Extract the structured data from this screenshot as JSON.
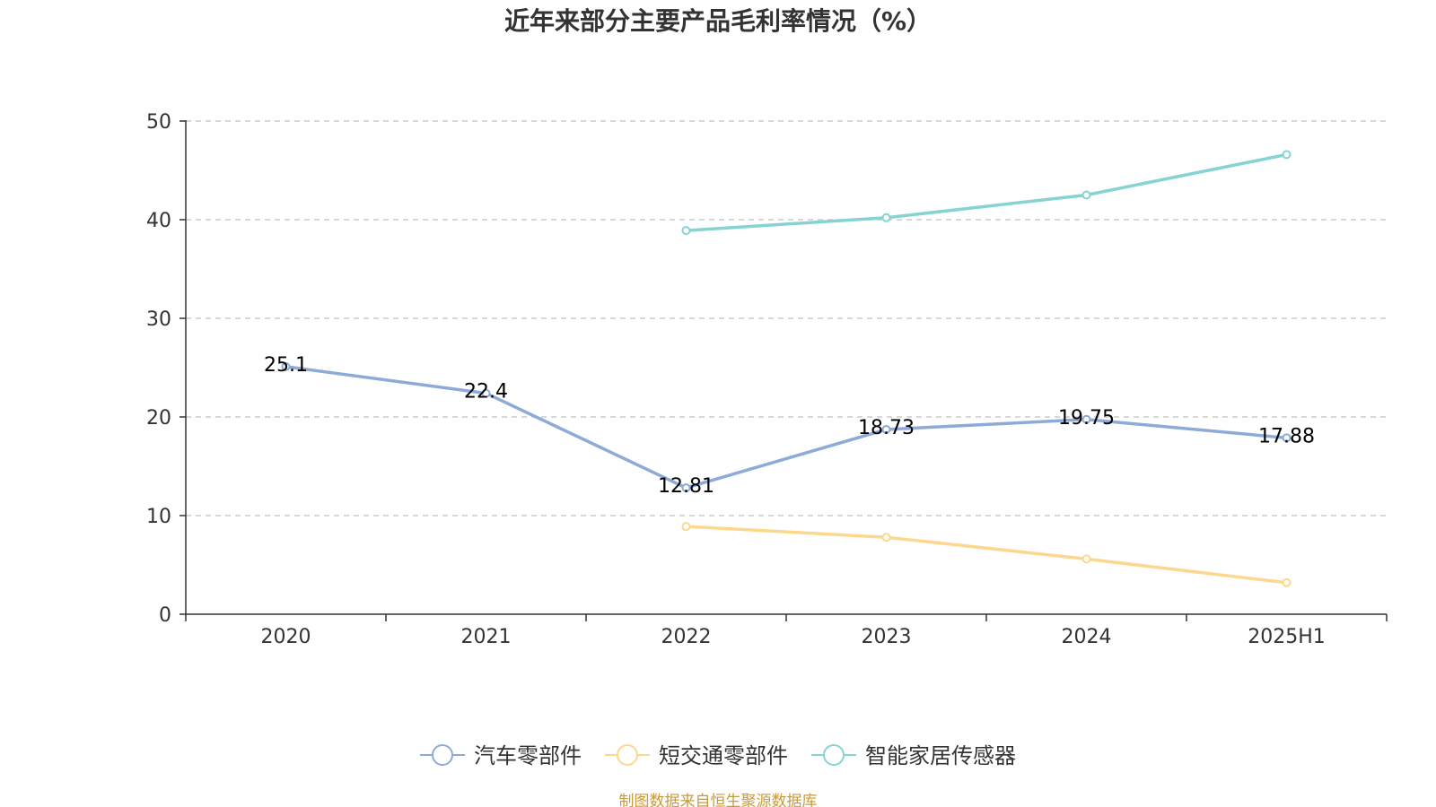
{
  "chart_data": {
    "type": "line",
    "title": "近年来部分主要产品毛利率情况（%）",
    "categories": [
      "2020",
      "2021",
      "2022",
      "2023",
      "2024",
      "2025H1"
    ],
    "ylim": [
      0,
      50
    ],
    "yticks": [
      0,
      10,
      20,
      30,
      40,
      50
    ],
    "grid": true,
    "legend_position": "bottom",
    "series": [
      {
        "name": "汽车零部件",
        "color": "#8eaad8",
        "values": [
          25.1,
          22.4,
          12.81,
          18.73,
          19.75,
          17.88
        ],
        "labels": [
          "25.1",
          "22.4",
          "12.81",
          "18.73",
          "19.75",
          "17.88"
        ],
        "show_labels": true
      },
      {
        "name": "短交通零部件",
        "color": "#fcd88e",
        "values": [
          null,
          null,
          8.9,
          7.8,
          5.6,
          3.2
        ],
        "show_labels": false
      },
      {
        "name": "智能家居传感器",
        "color": "#86d3d3",
        "values": [
          null,
          null,
          38.9,
          40.2,
          42.5,
          46.6
        ],
        "show_labels": false
      }
    ]
  },
  "source": "制图数据来自恒生聚源数据库"
}
